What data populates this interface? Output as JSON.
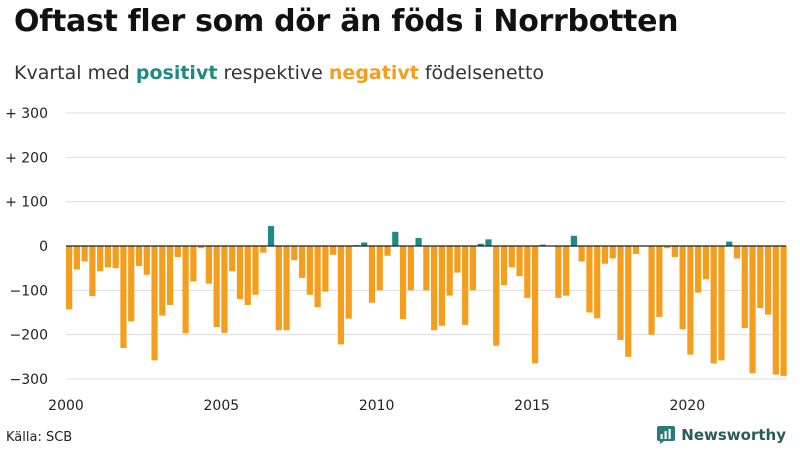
{
  "title": "Oftast fler som dör än föds i Norrbotten",
  "subtitle": {
    "prefix": "Kvartal med ",
    "positive_word": "positivt",
    "middle": " respektive ",
    "negative_word": "negativt",
    "suffix": " födelsenetto"
  },
  "source": "Källa: SCB",
  "brand": "Newsworthy",
  "colors": {
    "positive": "#1f8a85",
    "negative": "#f59e1d",
    "grid": "#dddddd",
    "zero": "#222222"
  },
  "chart_data": {
    "type": "bar",
    "xlabel": "",
    "ylabel": "",
    "ylim": [
      -300,
      300
    ],
    "yticks": [
      {
        "value": 300,
        "label": "+ 300"
      },
      {
        "value": 200,
        "label": "+ 200"
      },
      {
        "value": 100,
        "label": "+ 100"
      },
      {
        "value": 0,
        "label": "0"
      },
      {
        "value": -100,
        "label": "−100"
      },
      {
        "value": -200,
        "label": "−200"
      },
      {
        "value": -300,
        "label": "−300"
      }
    ],
    "xticks": [
      "2000",
      "2005",
      "2010",
      "2015",
      "2020"
    ],
    "start_year": 2000,
    "quarters_per_year": 4,
    "values": [
      -143,
      -53,
      -35,
      -113,
      -57,
      -48,
      -50,
      -230,
      -170,
      -45,
      -65,
      -258,
      -157,
      -133,
      -25,
      -197,
      -80,
      -5,
      -85,
      -183,
      -196,
      -57,
      -120,
      -133,
      -110,
      -15,
      45,
      -190,
      -190,
      -32,
      -72,
      -110,
      -138,
      -103,
      -20,
      -222,
      -164,
      2,
      8,
      -128,
      -100,
      -22,
      32,
      -165,
      -100,
      18,
      -100,
      -190,
      -180,
      -112,
      -60,
      -178,
      -100,
      5,
      15,
      -225,
      -88,
      -48,
      -68,
      -117,
      -265,
      3,
      0,
      -117,
      -112,
      23,
      -35,
      -150,
      -163,
      -40,
      -28,
      -212,
      -250,
      -18,
      0,
      -200,
      -160,
      -5,
      -25,
      -188,
      -245,
      -105,
      -75,
      -265,
      -258,
      10,
      -28,
      -185,
      -287,
      -140,
      -155,
      -290,
      -293
    ]
  }
}
